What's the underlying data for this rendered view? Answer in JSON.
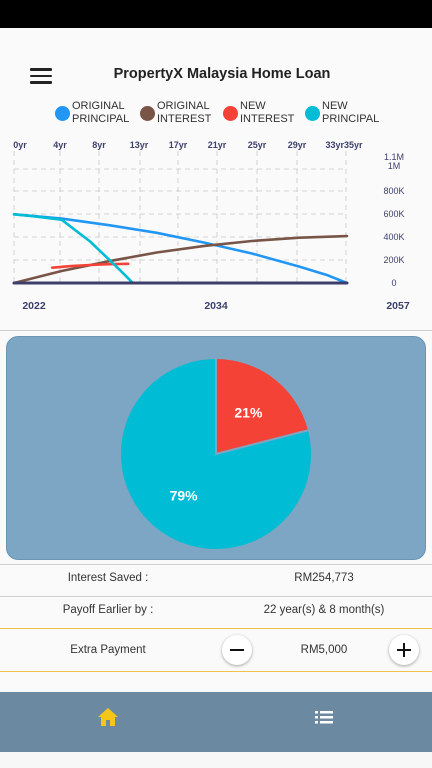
{
  "app": {
    "title": "PropertyX Malaysia Home Loan"
  },
  "legend": [
    {
      "label": "ORIGINAL\nPRINCIPAL",
      "color": "#2196f3"
    },
    {
      "label": "ORIGINAL\nINTEREST",
      "color": "#795548"
    },
    {
      "label": "NEW\nINTEREST",
      "color": "#f44336"
    },
    {
      "label": "NEW\nPRINCIPAL",
      "color": "#00bcd4"
    }
  ],
  "chart_data": {
    "type": "line",
    "x_ticks_top": [
      "0yr",
      "4yr",
      "8yr",
      "13yr",
      "17yr",
      "21yr",
      "25yr",
      "29yr",
      "33yr35yr"
    ],
    "x_ticks_bottom": [
      "2022",
      "2034",
      "2057"
    ],
    "y_ticks": [
      "1.1M\n1M",
      "800K",
      "600K",
      "400K",
      "200K",
      "0"
    ],
    "ylim": [
      0,
      1100000
    ],
    "xlim": [
      0,
      35
    ],
    "series": [
      {
        "name": "ORIGINAL PRINCIPAL",
        "color": "#2196f3",
        "x": [
          0,
          5,
          10,
          15,
          20,
          25,
          30,
          33,
          35
        ],
        "y": [
          630000,
          590000,
          530000,
          460000,
          370000,
          270000,
          150000,
          70000,
          0
        ]
      },
      {
        "name": "ORIGINAL INTEREST",
        "color": "#795548",
        "x": [
          0,
          5,
          10,
          15,
          20,
          25,
          30,
          35
        ],
        "y": [
          0,
          110000,
          200000,
          280000,
          340000,
          385000,
          415000,
          430000
        ]
      },
      {
        "name": "NEW INTEREST",
        "color": "#f44336",
        "x": [
          4,
          6,
          8,
          10,
          12
        ],
        "y": [
          140000,
          155000,
          165000,
          172000,
          176000
        ]
      },
      {
        "name": "NEW PRINCIPAL",
        "color": "#00bcd4",
        "x": [
          0,
          2,
          5,
          8,
          11,
          12.5
        ],
        "y": [
          630000,
          612000,
          580000,
          380000,
          130000,
          0
        ]
      },
      {
        "name": "baseline",
        "color": "#3c3f6b",
        "x": [
          0,
          35
        ],
        "y": [
          0,
          0
        ]
      }
    ]
  },
  "pie": {
    "colors": {
      "panel": "#7ca6c3",
      "interest": "#f44336",
      "principal": "#00bcd4"
    },
    "slices": [
      {
        "name": "Interest",
        "value": 21,
        "label": "21%",
        "color": "#f44336"
      },
      {
        "name": "Principal",
        "value": 79,
        "label": "79%",
        "color": "#00bcd4"
      }
    ]
  },
  "summary": {
    "interest_saved_label": "Interest Saved :",
    "interest_saved_value": "RM254,773",
    "payoff_label": "Payoff Earlier by :",
    "payoff_value": "22 year(s) & 8 month(s)"
  },
  "extra": {
    "label": "Extra Payment",
    "value": "RM5,000",
    "minus_icon": "minus-icon",
    "plus_icon": "plus-icon"
  },
  "nav": {
    "home_icon": "home-icon",
    "list_icon": "list-icon",
    "active_color": "#f5c518",
    "inactive_color": "#ffffff"
  }
}
